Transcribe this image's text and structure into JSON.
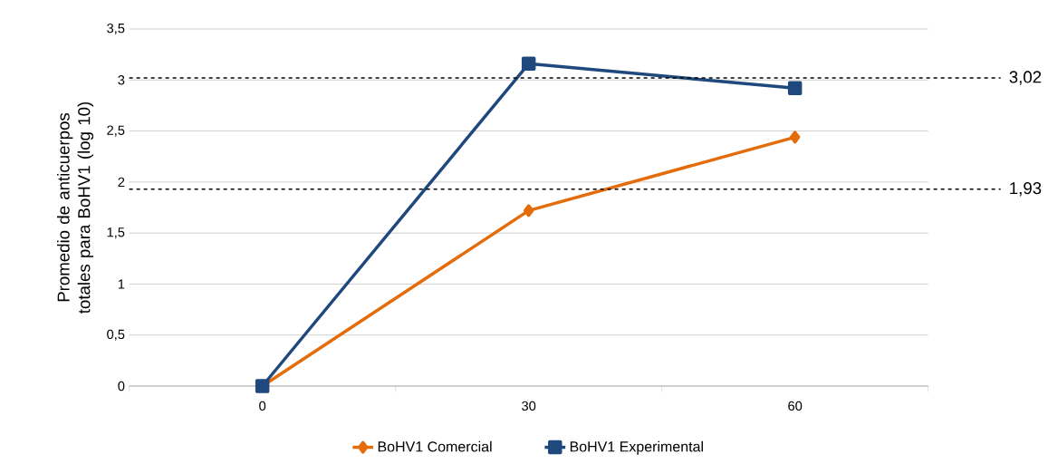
{
  "chart_data": {
    "type": "line",
    "ylabel": "Promedio de anticuerpos totales para BoHV1 (log 10)",
    "categories": [
      "0",
      "30",
      "60"
    ],
    "series": [
      {
        "name": "BoHV1 Comercial",
        "color": "#e46c0a",
        "marker": "diamond",
        "values": [
          0,
          1.72,
          2.44
        ]
      },
      {
        "name": "BoHV1 Experimental",
        "color": "#1f497d",
        "marker": "square",
        "values": [
          0,
          3.16,
          2.92
        ]
      }
    ],
    "ylim": [
      0,
      3.5
    ],
    "yticks": [
      0,
      {
        "value": 0.5,
        "label": "0,5"
      },
      1,
      {
        "value": 1.5,
        "label": "1,5"
      },
      2,
      {
        "value": 2.5,
        "label": "2,5"
      },
      3,
      {
        "value": 3.5,
        "label": "3,5"
      }
    ],
    "ref_lines": [
      {
        "axis": "y",
        "value": 3.02,
        "label": "3,02",
        "color": "#000000",
        "line_style": "dashed"
      },
      {
        "axis": "y",
        "value": 1.93,
        "label": "1,93",
        "color": "#000000",
        "line_style": "dashed"
      }
    ],
    "grid": "y",
    "legend": "bottom",
    "line_style": "solid"
  }
}
